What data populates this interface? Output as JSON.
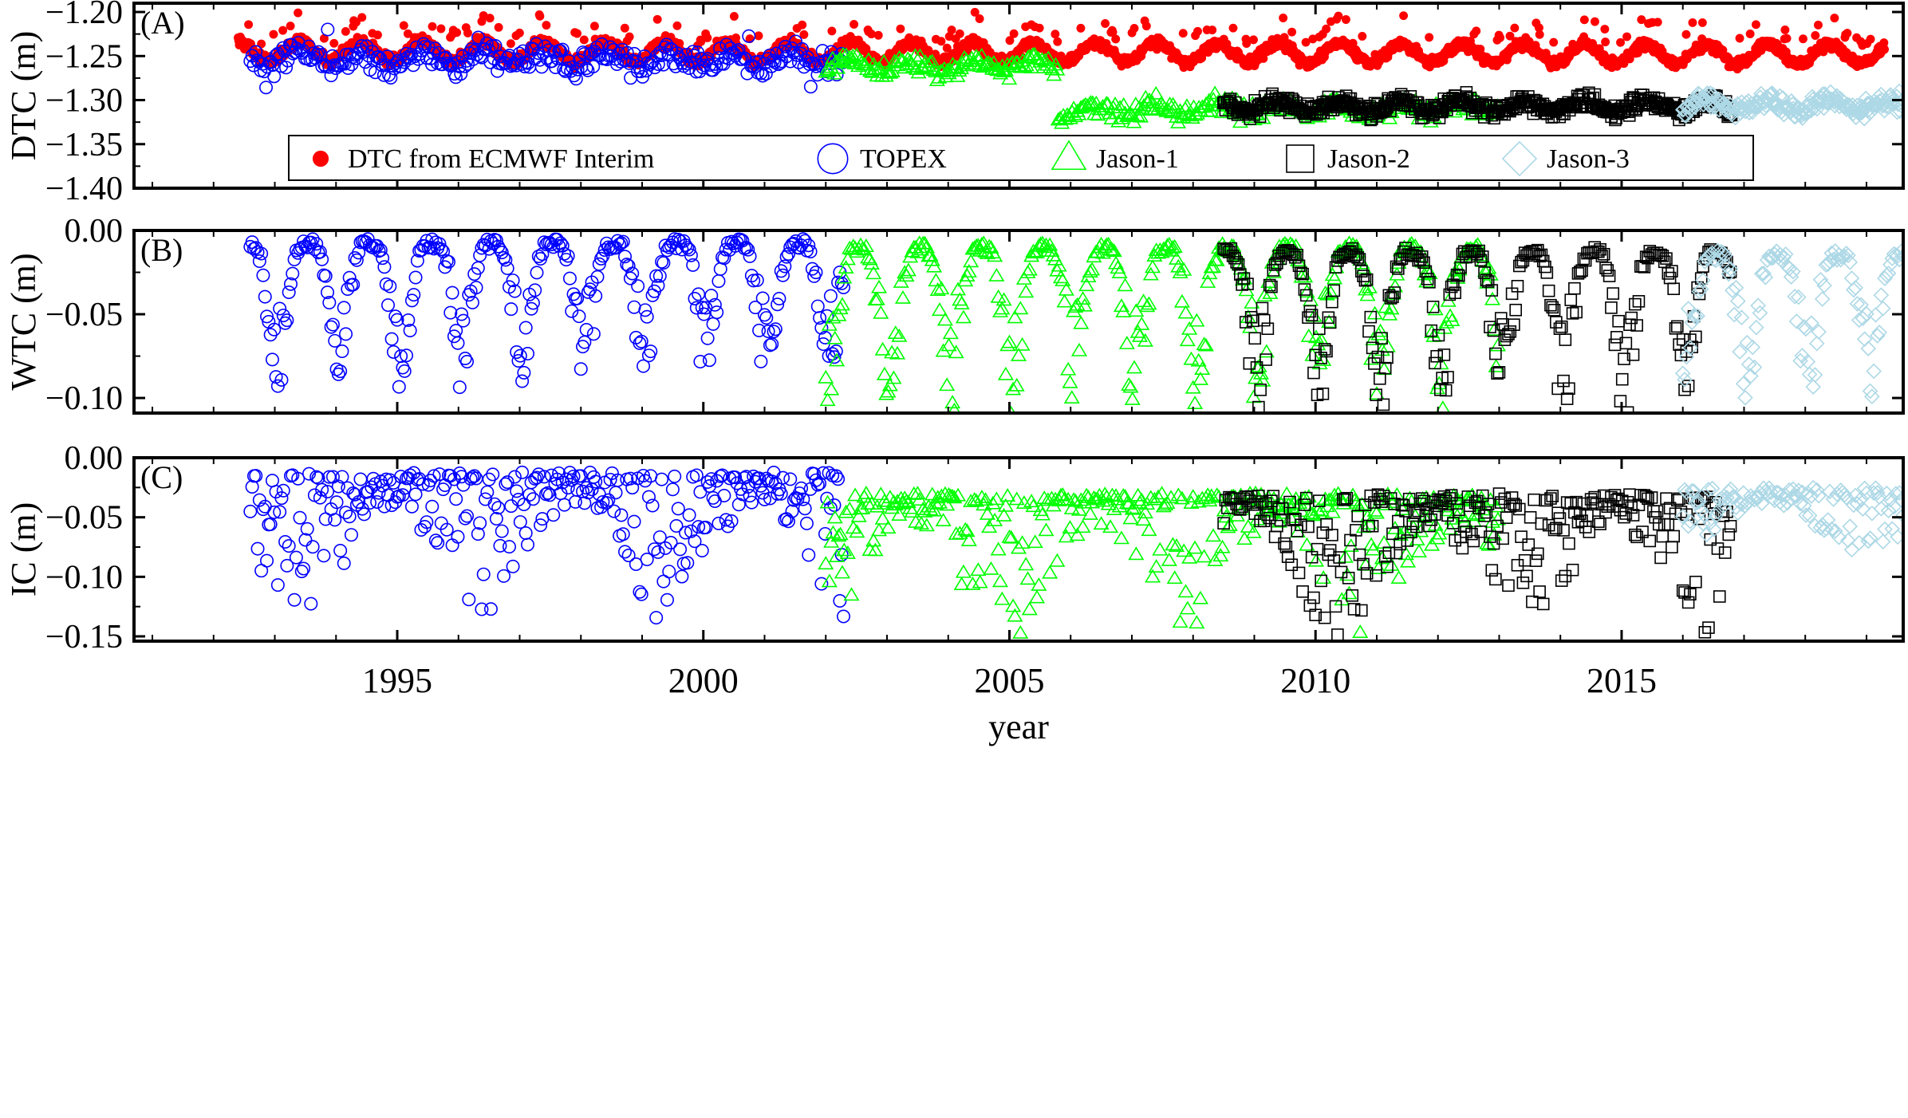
{
  "chart_data": {
    "type": "scatter",
    "xlabel": "year",
    "xlim": [
      1990.7,
      2019.6
    ],
    "xticks": [
      1995,
      2000,
      2005,
      2010,
      2015
    ],
    "xtick_labels": [
      "1995",
      "2000",
      "2005",
      "2010",
      "2015"
    ],
    "legend": {
      "placement": "inside bottom of panel A",
      "entries": [
        {
          "label": "DTC from ECMWF Interim",
          "marker": "filled-circle",
          "color": "#ff0000"
        },
        {
          "label": "TOPEX",
          "marker": "circle",
          "color": "#0000ff"
        },
        {
          "label": "Jason-1",
          "marker": "triangle",
          "color": "#00ff00"
        },
        {
          "label": "Jason-2",
          "marker": "square",
          "color": "#000000"
        },
        {
          "label": "Jason-3",
          "marker": "diamond",
          "color": "#add8e6"
        }
      ]
    },
    "panels": [
      {
        "id": "dtc",
        "tag": "(A)",
        "ylabel": "DTC (m)",
        "ylim": [
          -1.4,
          -1.19
        ],
        "yticks": [
          -1.4,
          -1.35,
          -1.3,
          -1.25,
          -1.2
        ],
        "ytick_labels": [
          "−1.40",
          "−1.35",
          "−1.30",
          "−1.25",
          "−1.20"
        ],
        "series": [
          {
            "name": "DTC from ECMWF Interim",
            "marker": "filled-circle",
            "color": "#ff0000",
            "x_range": [
              1992.4,
              2019.3
            ],
            "mean": -1.244,
            "trend_per_year": -0.00014,
            "seasonal_amplitude": 0.011,
            "noise": 0.006
          },
          {
            "name": "TOPEX",
            "marker": "circle",
            "color": "#0000ff",
            "x_range": [
              1992.6,
              2002.3
            ],
            "mean": -1.254,
            "trend_per_year": 0,
            "seasonal_amplitude": 0.007,
            "noise": 0.014
          },
          {
            "name": "Jason-1",
            "marker": "triangle",
            "color": "#00ff00",
            "segments": [
              {
                "x_range": [
                  2002.0,
                  2005.8
                ],
                "mean": -1.262
              },
              {
                "x_range": [
                  2005.8,
                  2008.3
                ],
                "mean": -1.312
              },
              {
                "x_range": [
                  2008.3,
                  2013.0
                ],
                "mean": -1.31
              }
            ],
            "seasonal_amplitude": 0.006,
            "noise": 0.01
          },
          {
            "name": "Jason-2",
            "marker": "square",
            "color": "#000000",
            "x_range": [
              2008.5,
              2016.8
            ],
            "mean": -1.307,
            "trend_per_year": 0,
            "seasonal_amplitude": 0.006,
            "noise": 0.009
          },
          {
            "name": "Jason-3",
            "marker": "diamond",
            "color": "#add8e6",
            "x_range": [
              2016.0,
              2019.6
            ],
            "mean": -1.306,
            "trend_per_year": 0,
            "seasonal_amplitude": 0.006,
            "noise": 0.01
          }
        ]
      },
      {
        "id": "wtc",
        "tag": "(B)",
        "ylabel": "WTC (m)",
        "ylim": [
          -0.109,
          0.0
        ],
        "yticks": [
          -0.1,
          -0.05,
          0.0
        ],
        "ytick_labels": [
          "−0.10",
          "−0.05",
          "0.00"
        ],
        "series": [
          {
            "name": "TOPEX",
            "marker": "circle",
            "color": "#0000ff",
            "x_range": [
              1992.6,
              2002.3
            ],
            "base": -0.005,
            "seasonal_depth": -0.09
          },
          {
            "name": "Jason-1",
            "marker": "triangle",
            "color": "#00ff00",
            "x_range": [
              2002.0,
              2013.0
            ],
            "base": -0.008,
            "seasonal_depth": -0.1
          },
          {
            "name": "Jason-2",
            "marker": "square",
            "color": "#000000",
            "x_range": [
              2008.5,
              2016.8
            ],
            "base": -0.01,
            "seasonal_depth": -0.1
          },
          {
            "name": "Jason-3",
            "marker": "diamond",
            "color": "#add8e6",
            "x_range": [
              2016.0,
              2019.6
            ],
            "base": -0.012,
            "seasonal_depth": -0.095
          }
        ]
      },
      {
        "id": "ic",
        "tag": "(C)",
        "ylabel": "IC (m)",
        "ylim": [
          -0.154,
          0.0
        ],
        "yticks": [
          -0.15,
          -0.1,
          -0.05,
          0.0
        ],
        "ytick_labels": [
          "−0.15",
          "−0.10",
          "−0.05",
          "0.00"
        ],
        "series": [
          {
            "name": "TOPEX",
            "marker": "circle",
            "color": "#0000ff",
            "x_range": [
              1992.6,
              2002.3
            ],
            "base": -0.012,
            "spread": -0.12
          },
          {
            "name": "Jason-1",
            "marker": "triangle",
            "color": "#00ff00",
            "x_range": [
              2002.0,
              2013.0
            ],
            "base": -0.03,
            "spread": -0.12
          },
          {
            "name": "Jason-2",
            "marker": "square",
            "color": "#000000",
            "x_range": [
              2008.5,
              2016.8
            ],
            "base": -0.03,
            "spread": -0.12
          },
          {
            "name": "Jason-3",
            "marker": "diamond",
            "color": "#add8e6",
            "x_range": [
              2016.0,
              2019.6
            ],
            "base": -0.025,
            "spread": -0.05
          }
        ]
      }
    ]
  }
}
